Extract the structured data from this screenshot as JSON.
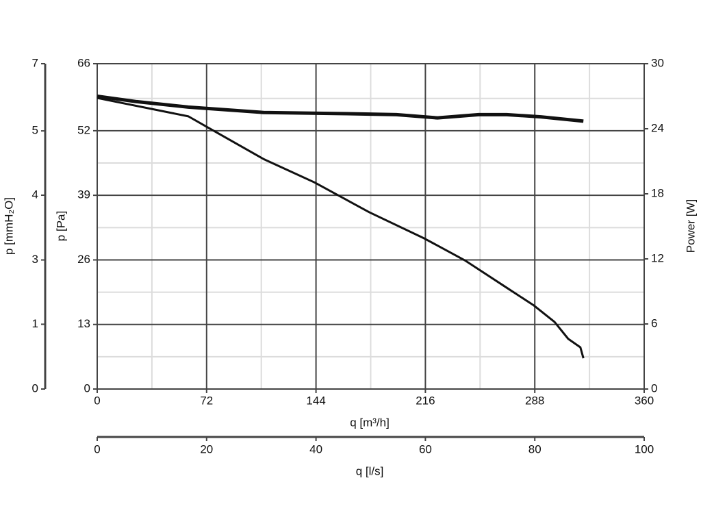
{
  "chart_data": {
    "type": "line",
    "xlabel": "q [m³/h]",
    "x2label": "q [l/s]",
    "ylabel": "p [Pa]",
    "y2label": "Power [W]",
    "y3label": "p [mmH₂O]",
    "xlim": [
      0,
      360
    ],
    "xticks": [
      0,
      72,
      144,
      216,
      288,
      360
    ],
    "xminor": [
      36,
      108,
      180,
      252,
      324
    ],
    "x2lim": [
      0,
      100
    ],
    "x2ticks": [
      0,
      20,
      40,
      60,
      80,
      100
    ],
    "ylim": [
      0,
      65.5
    ],
    "yticks": [
      0,
      13,
      26,
      39,
      52,
      {
        "value": 65.5,
        "label": "66"
      }
    ],
    "yminor": [
      6.5,
      19.5,
      32.5,
      45.5,
      58.5
    ],
    "y2lim": [
      0,
      30
    ],
    "y2ticks": [
      0,
      6,
      12,
      18,
      24,
      30
    ],
    "y3lim": [
      0,
      6.68
    ],
    "y3ticks": [
      0,
      {
        "value": 1.33,
        "label": "1"
      },
      {
        "value": 2.65,
        "label": "3"
      },
      {
        "value": 3.98,
        "label": "4"
      },
      {
        "value": 5.3,
        "label": "5"
      },
      {
        "value": 6.68,
        "label": "7"
      }
    ],
    "grid": true,
    "series": [
      {
        "color": "#111111",
        "axis": "y",
        "x": [
          0,
          60,
          72,
          109.5,
          143,
          179,
          215.4,
          242,
          269.5,
          287.5,
          301,
          310,
          318,
          320
        ],
        "values": [
          58.6,
          54.9,
          52.8,
          46.3,
          41.6,
          35.6,
          30.3,
          25.9,
          20.4,
          16.8,
          13.5,
          10.1,
          8.4,
          6.2
        ]
      },
      {
        "color": "#111111",
        "axis": "y2",
        "x": [
          0,
          26,
          60,
          109.5,
          161,
          197,
          224,
          251,
          269.5,
          292,
          320
        ],
        "values": [
          27.0,
          26.5,
          26.0,
          25.5,
          25.4,
          25.3,
          25.0,
          25.3,
          25.3,
          25.1,
          24.7
        ]
      }
    ]
  }
}
